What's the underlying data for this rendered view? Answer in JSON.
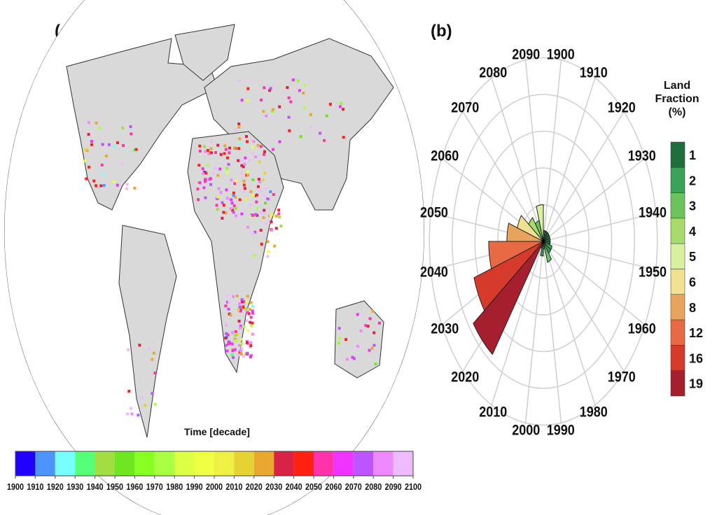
{
  "chart_data": [
    {
      "type": "map",
      "panel_label": "(a)",
      "colorbar_title": "Time [decade]",
      "colorbar_ticks": [
        "1900",
        "1910",
        "1920",
        "1930",
        "1940",
        "1950",
        "1960",
        "1970",
        "1980",
        "1990",
        "2000",
        "2010",
        "2020",
        "2030",
        "2040",
        "2050",
        "2060",
        "2070",
        "2080",
        "2090",
        "2100"
      ],
      "colorbar_colors": [
        "#2200ff",
        "#4d94ff",
        "#77ffff",
        "#55ff77",
        "#a3dd44",
        "#6ee622",
        "#88ff22",
        "#aaff44",
        "#ddff44",
        "#eeff44",
        "#eef044",
        "#e6d233",
        "#e8a830",
        "#d92248",
        "#ff2211",
        "#ff33aa",
        "#ee33ff",
        "#bb55ff",
        "#ee88ff",
        "#eebbff"
      ]
    },
    {
      "type": "polar_bar",
      "panel_label": "(b)",
      "categories": [
        "1900",
        "1910",
        "1920",
        "1930",
        "1940",
        "1950",
        "1960",
        "1970",
        "1980",
        "1990",
        "2000",
        "2010",
        "2020",
        "2030",
        "2040",
        "2050",
        "2060",
        "2070",
        "2080",
        "2090"
      ],
      "values": [
        1.5,
        1.5,
        1.5,
        1.5,
        1.5,
        1.5,
        2,
        2,
        3,
        1,
        2,
        1,
        19,
        16,
        12,
        8,
        6,
        4,
        3,
        5
      ],
      "rlim": [
        0,
        25
      ],
      "rings": [
        5,
        10,
        15,
        20,
        25
      ],
      "legend_title": [
        "Land",
        "Fraction",
        "(%)"
      ],
      "legend": [
        {
          "label": "1",
          "color": "#1f6e3a"
        },
        {
          "label": "2",
          "color": "#3aa357"
        },
        {
          "label": "3",
          "color": "#6cc35e"
        },
        {
          "label": "4",
          "color": "#a6dd6a"
        },
        {
          "label": "5",
          "color": "#d9f0a0"
        },
        {
          "label": "6",
          "color": "#f0e08f"
        },
        {
          "label": "8",
          "color": "#e8a45c"
        },
        {
          "label": "12",
          "color": "#e86a45"
        },
        {
          "label": "16",
          "color": "#d63a2a"
        },
        {
          "label": "19",
          "color": "#a51f2e"
        }
      ]
    }
  ]
}
